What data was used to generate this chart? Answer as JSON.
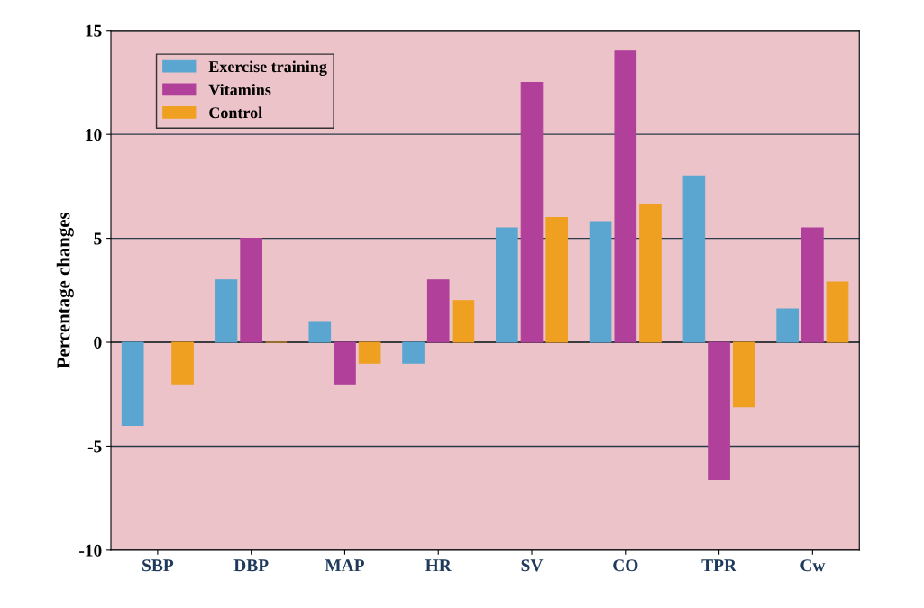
{
  "chart_data": {
    "type": "bar",
    "ylabel": "Percentage changes",
    "categories": [
      "SBP",
      "DBP",
      "MAP",
      "HR",
      "SV",
      "CO",
      "TPR",
      "Cw"
    ],
    "series": [
      {
        "name": "Exercise training",
        "color": "#5aa6d0",
        "values": [
          -4,
          3,
          1,
          -1,
          5.5,
          5.8,
          8,
          1.6
        ]
      },
      {
        "name": "Vitamins",
        "color": "#b0409a",
        "values": [
          null,
          5,
          -2,
          3,
          12.5,
          14,
          -6.6,
          5.5
        ]
      },
      {
        "name": "Control",
        "color": "#f0a020",
        "values": [
          -2,
          0,
          -1,
          2,
          6,
          6.6,
          -3.1,
          2.9
        ]
      }
    ],
    "ylim": [
      -10,
      15
    ],
    "yticks": [
      -10,
      -5,
      0,
      5,
      10,
      15
    ],
    "grid": "y",
    "legend": "top left"
  }
}
